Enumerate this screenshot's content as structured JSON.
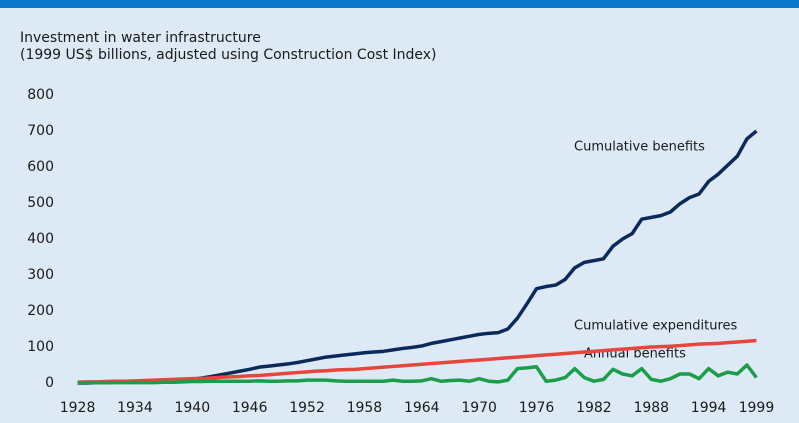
{
  "chart_data": {
    "type": "line",
    "title": "Investment in water infrastructure",
    "subtitle": "(1999 US$ billions, adjusted using Construction Cost Index)",
    "x": [
      1928,
      1929,
      1930,
      1931,
      1932,
      1933,
      1934,
      1935,
      1936,
      1937,
      1938,
      1939,
      1940,
      1941,
      1942,
      1943,
      1944,
      1945,
      1946,
      1947,
      1948,
      1949,
      1950,
      1951,
      1952,
      1953,
      1954,
      1955,
      1956,
      1957,
      1958,
      1959,
      1960,
      1961,
      1962,
      1963,
      1964,
      1965,
      1966,
      1967,
      1968,
      1969,
      1970,
      1971,
      1972,
      1973,
      1974,
      1975,
      1976,
      1977,
      1978,
      1979,
      1980,
      1981,
      1982,
      1983,
      1984,
      1985,
      1986,
      1987,
      1988,
      1989,
      1990,
      1991,
      1992,
      1993,
      1994,
      1995,
      1996,
      1997,
      1998,
      1999
    ],
    "series": [
      {
        "name": "Cumulative benefits",
        "color": "#0b2a5c",
        "values": [
          0,
          0,
          1,
          1,
          2,
          2,
          3,
          3,
          4,
          5,
          6,
          8,
          10,
          14,
          18,
          23,
          28,
          33,
          38,
          44,
          47,
          50,
          53,
          57,
          62,
          67,
          72,
          75,
          78,
          81,
          84,
          86,
          88,
          92,
          96,
          99,
          103,
          110,
          115,
          120,
          125,
          130,
          135,
          138,
          140,
          150,
          180,
          220,
          262,
          268,
          272,
          288,
          320,
          335,
          340,
          345,
          380,
          400,
          415,
          455,
          460,
          465,
          475,
          498,
          515,
          525,
          560,
          580,
          605,
          630,
          678,
          700
        ]
      },
      {
        "name": "Cumulative expenditures",
        "color": "#e8453c",
        "values": [
          2,
          3,
          3,
          4,
          5,
          5,
          6,
          7,
          8,
          9,
          10,
          11,
          12,
          13,
          14,
          16,
          17,
          18,
          20,
          21,
          23,
          25,
          27,
          29,
          31,
          33,
          34,
          36,
          37,
          38,
          40,
          42,
          44,
          46,
          48,
          50,
          52,
          54,
          56,
          58,
          60,
          62,
          64,
          66,
          68,
          70,
          72,
          74,
          76,
          78,
          80,
          82,
          84,
          86,
          88,
          90,
          92,
          94,
          96,
          98,
          100,
          101,
          102,
          104,
          106,
          108,
          109,
          110,
          112,
          114,
          116,
          118
        ]
      },
      {
        "name": "Annual benefits",
        "color": "#1a9e4a",
        "values": [
          1,
          1,
          1,
          1,
          1,
          1,
          1,
          1,
          1,
          2,
          2,
          3,
          4,
          4,
          5,
          5,
          5,
          5,
          5,
          6,
          5,
          5,
          6,
          6,
          8,
          8,
          8,
          6,
          5,
          5,
          5,
          5,
          5,
          8,
          5,
          5,
          6,
          12,
          5,
          7,
          8,
          5,
          12,
          5,
          3,
          8,
          40,
          42,
          45,
          5,
          8,
          15,
          40,
          15,
          5,
          10,
          38,
          25,
          20,
          40,
          10,
          5,
          12,
          25,
          25,
          12,
          40,
          20,
          30,
          25,
          50,
          15
        ]
      }
    ],
    "xlim": [
      1927,
      2000
    ],
    "xticks": [
      1928,
      1934,
      1940,
      1946,
      1952,
      1958,
      1964,
      1970,
      1976,
      1982,
      1988,
      1994,
      1999
    ],
    "ylim": [
      0,
      800
    ],
    "yticks": [
      0,
      100,
      200,
      300,
      400,
      500,
      600,
      700,
      800
    ]
  }
}
